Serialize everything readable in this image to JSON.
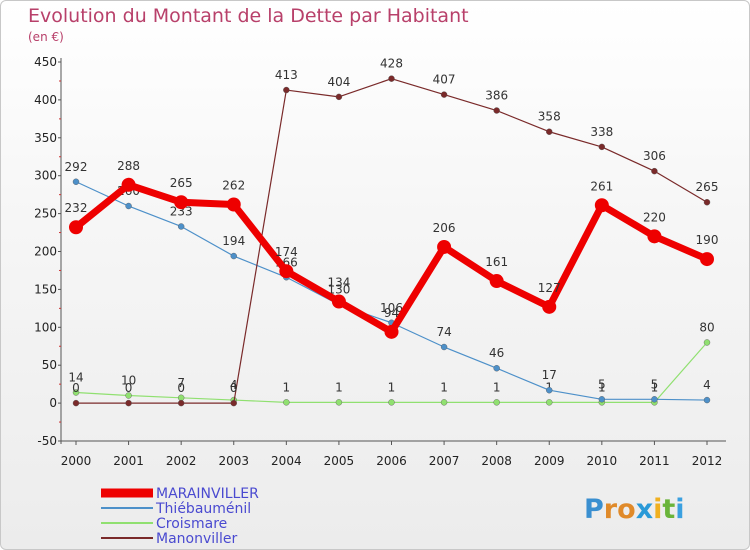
{
  "chart_data": {
    "type": "line",
    "title": "Evolution du Montant de la Dette par Habitant",
    "subtitle": "(en €)",
    "xlabel": "",
    "ylabel": "",
    "x": [
      "2000",
      "2001",
      "2002",
      "2003",
      "2004",
      "2005",
      "2006",
      "2007",
      "2008",
      "2009",
      "2010",
      "2011",
      "2012"
    ],
    "ylim": [
      -50,
      450
    ],
    "yticks": [
      -50,
      0,
      50,
      100,
      150,
      200,
      250,
      300,
      350,
      400,
      450
    ],
    "grid": false,
    "legend_position": "bottom-left",
    "series": [
      {
        "name": "MARAINVILLER",
        "color": "#ee0000",
        "values": [
          232,
          288,
          265,
          262,
          174,
          134,
          94,
          206,
          161,
          127,
          261,
          220,
          190
        ],
        "labels": [
          "232",
          "288",
          "265",
          "262",
          "174",
          "134",
          "94",
          "206",
          "161",
          "127",
          "261",
          "220",
          "190"
        ]
      },
      {
        "name": "Thiébauménil",
        "color": "#4d90c9",
        "values": [
          292,
          260,
          233,
          194,
          166,
          130,
          106,
          74,
          46,
          17,
          5,
          5,
          4
        ],
        "labels": [
          "292",
          "260",
          "233",
          "194",
          "166",
          "130",
          "106",
          "74",
          "46",
          "17",
          "5",
          "5",
          "4"
        ]
      },
      {
        "name": "Croismare",
        "color": "#90e070",
        "values": [
          14,
          10,
          7,
          4,
          1,
          1,
          1,
          1,
          1,
          1,
          1,
          1,
          80
        ],
        "labels": [
          "14",
          "10",
          "7",
          "4",
          "1",
          "1",
          "1",
          "1",
          "1",
          "1",
          "1",
          "1",
          "80"
        ]
      },
      {
        "name": "Manonviller",
        "color": "#7a2a2a",
        "values": [
          0,
          0,
          0,
          0,
          413,
          404,
          428,
          407,
          386,
          358,
          338,
          306,
          265
        ],
        "labels": [
          "0",
          "0",
          "0",
          "0",
          "413",
          "404",
          "428",
          "407",
          "386",
          "358",
          "338",
          "306",
          "265"
        ]
      }
    ]
  },
  "logo": {
    "text": "Proxiti"
  }
}
